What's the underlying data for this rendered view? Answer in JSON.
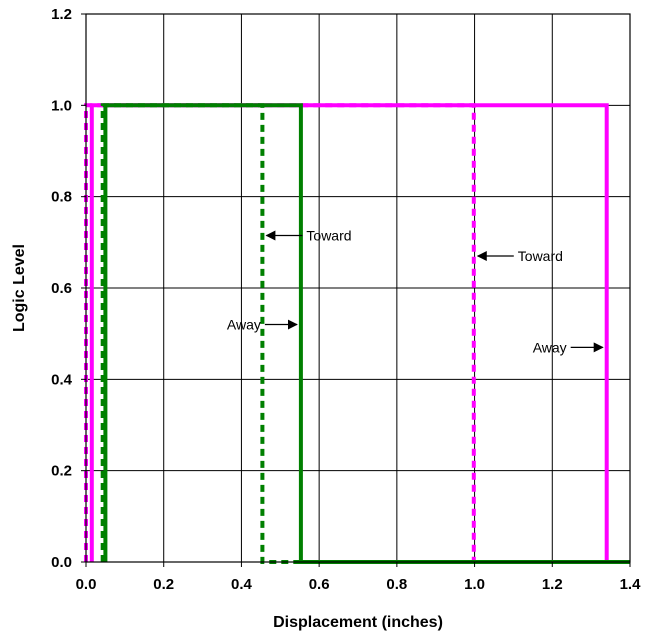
{
  "chart_data": {
    "type": "line",
    "title": "",
    "xlabel": "Displacement (inches)",
    "ylabel": "Logic Level",
    "xlim": [
      0,
      1.4
    ],
    "ylim": [
      0,
      1.2
    ],
    "x_ticks": [
      0,
      0.2,
      0.4,
      0.6,
      0.8,
      1.0,
      1.2,
      1.4
    ],
    "x_tick_labels": [
      "0.0",
      "0.2",
      "0.4",
      "0.6",
      "0.8",
      "1.0",
      "1.2",
      "1.4"
    ],
    "y_ticks": [
      0,
      0.2,
      0.4,
      0.6,
      0.8,
      1.0,
      1.2
    ],
    "y_tick_labels": [
      "0.0",
      "0.2",
      "0.4",
      "0.6",
      "0.8",
      "1.0",
      "1.2"
    ],
    "grid": true,
    "legend": "none",
    "series": [
      {
        "color": "#ff00ff",
        "dash": "solid",
        "x": [
          0.015,
          0.015,
          1.34,
          1.34,
          1.4
        ],
        "y": [
          0,
          1,
          1,
          0,
          0
        ]
      },
      {
        "color": "#ff00ff",
        "dash": "dotted",
        "x": [
          0,
          0,
          0.998,
          0.998,
          1.4
        ],
        "y": [
          0,
          1,
          1,
          0,
          0
        ]
      },
      {
        "color": "#008000",
        "dash": "solid",
        "x": [
          0.05,
          0.05,
          0.553,
          0.553,
          1.4
        ],
        "y": [
          0,
          1,
          1,
          0,
          0
        ]
      },
      {
        "color": "#008000",
        "dash": "dotted",
        "x": [
          0.043,
          0.043,
          0.454,
          0.454,
          1.4
        ],
        "y": [
          0,
          1,
          1,
          0,
          0
        ]
      }
    ],
    "annotations": [
      {
        "text": "Toward",
        "x": 0.454,
        "y": 0.715,
        "side": "right"
      },
      {
        "text": "Away",
        "x": 0.553,
        "y": 0.52,
        "side": "left"
      },
      {
        "text": "Toward",
        "x": 0.998,
        "y": 0.67,
        "side": "right"
      },
      {
        "text": "Away",
        "x": 1.34,
        "y": 0.47,
        "side": "left"
      }
    ]
  }
}
